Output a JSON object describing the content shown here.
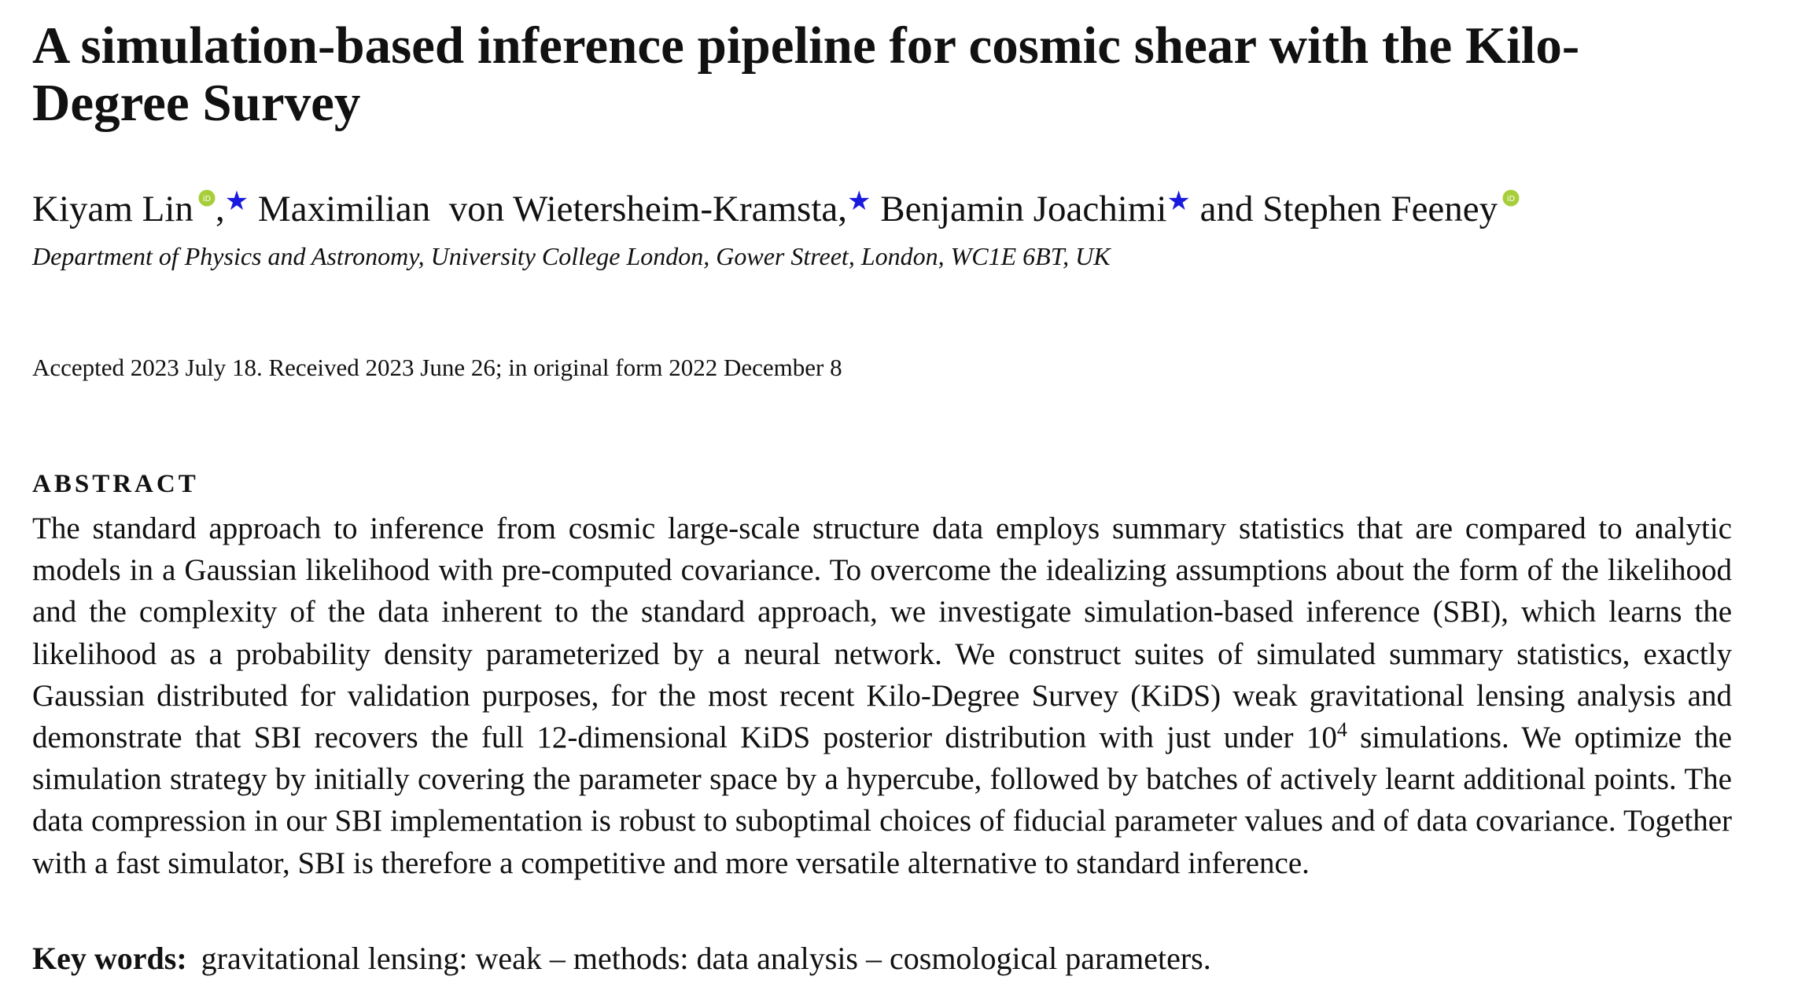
{
  "title": "A simulation-based inference pipeline for cosmic shear with the Kilo-Degree Survey",
  "authors": [
    {
      "name": "Kiyam Lin",
      "after": ",",
      "star": "★"
    },
    {
      "name": "Maximilian  von Wietersheim-Kramsta",
      "after": ",",
      "star": "★"
    },
    {
      "name": "Benjamin Joachimi",
      "star": "★"
    },
    {
      "name": "Stephen Feeney"
    }
  ],
  "conjunction": "and",
  "affiliation": "Department of Physics and Astronomy, University College London, Gower Street, London, WC1E 6BT, UK",
  "dates": "Accepted 2023 July 18. Received 2023 June 26; in original form 2022 December 8",
  "abstract": {
    "heading": "ABSTRACT",
    "parts": [
      "The standard approach to inference from cosmic large-scale structure data employs summary statistics that are compared to analytic models in a Gaussian likelihood with pre-computed covariance. To overcome the idealizing assumptions about the form of the likelihood and the complexity of the data inherent to the standard approach, we investigate simulation-based inference (SBI), which learns the likelihood as a probability density parameterized by a neural network. We construct suites of simulated summary statistics, exactly Gaussian distributed for validation purposes, for the most recent Kilo-Degree Survey (KiDS) weak gravitational lensing analysis and demonstrate that SBI recovers the full 12-dimensional KiDS posterior distribution with just under 10",
      "4",
      " simulations. We optimize the simulation strategy by initially covering the parameter space by a hypercube, followed by batches of actively learnt additional points. The data compression in our SBI implementation is robust to suboptimal choices of fiducial parameter values and of data covariance. Together with a fast simulator, SBI is therefore a competitive and more versatile alternative to standard inference."
    ]
  },
  "keywords": {
    "label": "Key words:",
    "text": "gravitational lensing: weak – methods: data analysis – cosmological parameters."
  }
}
